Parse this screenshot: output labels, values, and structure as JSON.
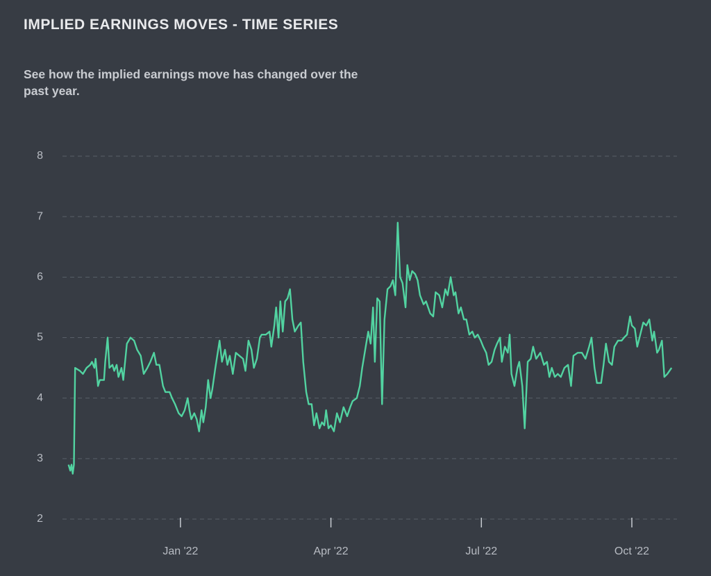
{
  "chart_data": {
    "type": "line",
    "title": "IMPLIED EARNINGS MOVES - TIME SERIES",
    "subtitle": "See how the implied earnings move has changed over the past year.",
    "color": "#52d3a1",
    "grid": true,
    "xlim": [
      2021.804,
      2022.825
    ],
    "xticks": [
      {
        "value": 2022.0,
        "label": "Jan '22"
      },
      {
        "value": 2022.25,
        "label": "Apr '22"
      },
      {
        "value": 2022.5,
        "label": "Jul '22"
      },
      {
        "value": 2022.75,
        "label": "Oct '22"
      }
    ],
    "ylim": [
      2,
      8
    ],
    "yticks": [
      2,
      3,
      4,
      5,
      6,
      7,
      8
    ],
    "x": [
      2021.814,
      2021.817,
      2021.819,
      2021.821,
      2021.823,
      2021.825,
      2021.833,
      2021.838,
      2021.844,
      2021.85,
      2021.853,
      2021.857,
      2021.859,
      2021.863,
      2021.866,
      2021.873,
      2021.875,
      2021.879,
      2021.882,
      2021.887,
      2021.89,
      2021.894,
      2021.897,
      2021.902,
      2021.905,
      2021.911,
      2021.917,
      2021.923,
      2021.928,
      2021.934,
      2021.939,
      2021.945,
      2021.95,
      2021.956,
      2021.96,
      2021.965,
      2021.971,
      2021.975,
      2021.982,
      2021.986,
      2021.991,
      2021.997,
      2022.002,
      2022.007,
      2022.012,
      2022.015,
      2022.018,
      2022.023,
      2022.027,
      2022.031,
      2022.035,
      2022.038,
      2022.042,
      2022.046,
      2022.05,
      2022.053,
      2022.058,
      2022.065,
      2022.069,
      2022.074,
      2022.078,
      2022.082,
      2022.087,
      2022.092,
      2022.098,
      2022.104,
      2022.108,
      2022.113,
      2022.118,
      2022.122,
      2022.127,
      2022.132,
      2022.135,
      2022.142,
      2022.148,
      2022.151,
      2022.156,
      2022.159,
      2022.163,
      2022.166,
      2022.17,
      2022.174,
      2022.178,
      2022.182,
      2022.186,
      2022.19,
      2022.196,
      2022.2,
      2022.204,
      2022.209,
      2022.213,
      2022.218,
      2022.222,
      2022.226,
      2022.231,
      2022.235,
      2022.239,
      2022.242,
      2022.246,
      2022.25,
      2022.255,
      2022.26,
      2022.265,
      2022.271,
      2022.277,
      2022.282,
      2022.286,
      2022.293,
      2022.298,
      2022.302,
      2022.307,
      2022.312,
      2022.316,
      2022.32,
      2022.323,
      2022.327,
      2022.331,
      2022.335,
      2022.339,
      2022.344,
      2022.349,
      2022.353,
      2022.357,
      2022.361,
      2022.365,
      2022.369,
      2022.374,
      2022.377,
      2022.381,
      2022.385,
      2022.39,
      2022.394,
      2022.398,
      2022.404,
      2022.408,
      2022.415,
      2022.42,
      2022.424,
      2022.43,
      2022.435,
      2022.44,
      2022.444,
      2022.449,
      2022.454,
      2022.457,
      2022.462,
      2022.466,
      2022.471,
      2022.475,
      2022.48,
      2022.485,
      2022.489,
      2022.494,
      2022.499,
      2022.503,
      2022.508,
      2022.512,
      2022.517,
      2022.522,
      2022.526,
      2022.531,
      2022.534,
      2022.539,
      2022.544,
      2022.547,
      2022.55,
      2022.555,
      2022.56,
      2022.563,
      2022.568,
      2022.572,
      2022.577,
      2022.582,
      2022.586,
      2022.591,
      2022.598,
      2022.604,
      2022.609,
      2022.613,
      2022.617,
      2022.622,
      2022.627,
      2022.632,
      2022.638,
      2022.644,
      2022.649,
      2022.653,
      2022.66,
      2022.667,
      2022.673,
      2022.679,
      2022.683,
      2022.688,
      2022.692,
      2022.699,
      2022.703,
      2022.707,
      2022.712,
      2022.717,
      2022.721,
      2022.727,
      2022.733,
      2022.737,
      2022.742,
      2022.747,
      2022.75,
      2022.755,
      2022.759,
      2022.764,
      2022.769,
      2022.774,
      2022.779,
      2022.784,
      2022.787,
      2022.792,
      2022.795,
      2022.8,
      2022.804,
      2022.809,
      2022.816
    ],
    "values": [
      2.9,
      2.8,
      2.9,
      2.75,
      2.9,
      4.5,
      4.45,
      4.4,
      4.5,
      4.55,
      4.6,
      4.5,
      4.65,
      4.2,
      4.3,
      4.3,
      4.6,
      5.0,
      4.5,
      4.55,
      4.45,
      4.55,
      4.35,
      4.5,
      4.3,
      4.9,
      5.0,
      4.95,
      4.8,
      4.7,
      4.4,
      4.5,
      4.6,
      4.75,
      4.55,
      4.55,
      4.2,
      4.1,
      4.1,
      4.0,
      3.9,
      3.75,
      3.7,
      3.8,
      4.0,
      3.8,
      3.65,
      3.75,
      3.65,
      3.45,
      3.8,
      3.6,
      3.85,
      4.3,
      4.0,
      4.15,
      4.5,
      4.95,
      4.6,
      4.8,
      4.55,
      4.7,
      4.4,
      4.75,
      4.7,
      4.65,
      4.45,
      4.95,
      4.8,
      4.5,
      4.65,
      5.0,
      5.05,
      5.05,
      5.1,
      4.85,
      5.2,
      5.5,
      5.0,
      5.6,
      5.1,
      5.6,
      5.65,
      5.8,
      5.3,
      5.1,
      5.2,
      5.25,
      4.6,
      4.1,
      3.9,
      3.9,
      3.55,
      3.75,
      3.5,
      3.6,
      3.55,
      3.8,
      3.5,
      3.55,
      3.45,
      3.75,
      3.6,
      3.85,
      3.7,
      3.85,
      3.95,
      4.0,
      4.2,
      4.5,
      4.8,
      5.1,
      4.9,
      5.5,
      4.6,
      5.65,
      5.6,
      3.9,
      5.3,
      5.8,
      5.85,
      5.95,
      5.7,
      6.9,
      6.0,
      5.9,
      5.5,
      6.2,
      5.95,
      6.1,
      6.05,
      5.95,
      5.7,
      5.55,
      5.6,
      5.4,
      5.35,
      5.75,
      5.7,
      5.5,
      5.8,
      5.7,
      6.0,
      5.7,
      5.75,
      5.4,
      5.5,
      5.3,
      5.3,
      5.05,
      5.1,
      5.0,
      5.05,
      4.95,
      4.85,
      4.75,
      4.55,
      4.6,
      4.8,
      4.9,
      5.0,
      4.6,
      4.85,
      4.75,
      5.05,
      4.4,
      4.2,
      4.5,
      4.6,
      4.2,
      3.5,
      4.6,
      4.65,
      4.85,
      4.65,
      4.75,
      4.55,
      4.6,
      4.35,
      4.5,
      4.35,
      4.4,
      4.35,
      4.5,
      4.55,
      4.2,
      4.7,
      4.75,
      4.75,
      4.65,
      4.85,
      5.0,
      4.5,
      4.25,
      4.25,
      4.55,
      4.9,
      4.6,
      4.55,
      4.85,
      4.95,
      4.95,
      5.0,
      5.05,
      5.35,
      5.2,
      5.15,
      4.85,
      5.05,
      5.25,
      5.2,
      5.3,
      4.95,
      5.1,
      4.75,
      4.8,
      4.95,
      4.35,
      4.4,
      4.5
    ]
  }
}
